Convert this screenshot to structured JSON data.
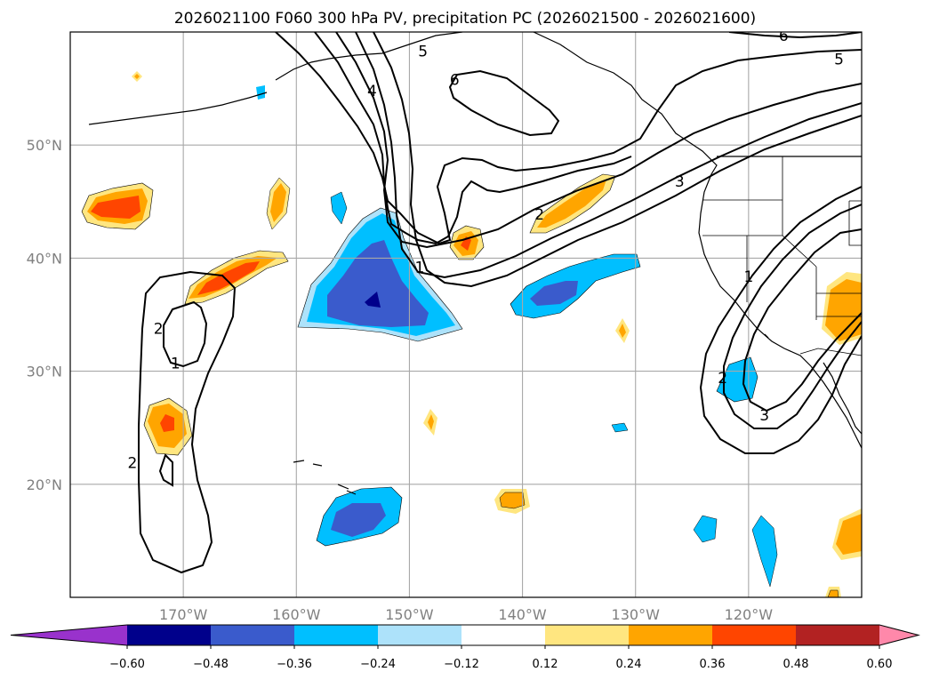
{
  "chart_data": {
    "type": "heatmap",
    "title": "2026021100 F060 300 hPa PV, precipitation PC (2026021500 - 2026021600)",
    "projection": "lat-lon",
    "xlim": [
      -180,
      -110
    ],
    "ylim": [
      10,
      60
    ],
    "lat_ticks": [
      {
        "value": 50,
        "label": "50°N"
      },
      {
        "value": 40,
        "label": "40°N"
      },
      {
        "value": 30,
        "label": "30°N"
      },
      {
        "value": 20,
        "label": "20°N"
      }
    ],
    "lon_ticks": [
      {
        "value": -170,
        "label": "170°W"
      },
      {
        "value": -160,
        "label": "160°W"
      },
      {
        "value": -150,
        "label": "150°W"
      },
      {
        "value": -140,
        "label": "140°W"
      },
      {
        "value": -130,
        "label": "130°W"
      },
      {
        "value": -120,
        "label": "120°W"
      }
    ],
    "grid": true,
    "colorbar": {
      "placement": "bottom",
      "extend": "both",
      "tick_labels": [
        "−0.60",
        "−0.48",
        "−0.36",
        "−0.24",
        "−0.12",
        "0.12",
        "0.24",
        "0.36",
        "0.48",
        "0.60"
      ],
      "under_color": "#9932CC",
      "over_color": "#FF88AA",
      "bin_colors": [
        "#00008B",
        "#3A5BCC",
        "#00BFFF",
        "#ADE2FA",
        "#FFFFFF",
        "#FFE680",
        "#FFA500",
        "#FF4500",
        "#B22222"
      ]
    },
    "pv_contours": {
      "levels": [
        1,
        2,
        3,
        4,
        5,
        6
      ],
      "labels": [
        {
          "text": "5",
          "lon": -148.8,
          "lat": 58.3
        },
        {
          "text": "6",
          "lon": -146.0,
          "lat": 55.8
        },
        {
          "text": "4",
          "lon": -153.3,
          "lat": 54.8
        },
        {
          "text": "6",
          "lon": -116.9,
          "lat": 59.7
        },
        {
          "text": "5",
          "lon": -112.0,
          "lat": 57.6
        },
        {
          "text": "3",
          "lon": -126.1,
          "lat": 46.8
        },
        {
          "text": "2",
          "lon": -138.5,
          "lat": 43.9
        },
        {
          "text": "1",
          "lon": -149.1,
          "lat": 39.2
        },
        {
          "text": "1",
          "lon": -120.0,
          "lat": 38.4
        },
        {
          "text": "2",
          "lon": -122.3,
          "lat": 29.4
        },
        {
          "text": "3",
          "lon": -118.6,
          "lat": 26.1
        },
        {
          "text": "2",
          "lon": -172.2,
          "lat": 33.8
        },
        {
          "text": "1",
          "lon": -170.7,
          "lat": 30.7
        },
        {
          "text": "2",
          "lon": -174.5,
          "lat": 21.9
        }
      ]
    },
    "precip_regions": [
      {
        "name": "west-central-pacific-negative",
        "value": -0.48,
        "lon": -152.5,
        "lat": 36.5
      },
      {
        "name": "central-north-pacific-negative",
        "value": -0.36,
        "lon": -139.0,
        "lat": 37.0
      },
      {
        "name": "hawaii-negative",
        "value": -0.36,
        "lon": -155.0,
        "lat": 16.5
      },
      {
        "name": "baja-negative",
        "value": -0.24,
        "lon": -120.5,
        "lat": 28.5
      },
      {
        "name": "dateline-positive",
        "value": 0.36,
        "lon": -176.5,
        "lat": 44.0
      },
      {
        "name": "subtropical-band-positive",
        "value": 0.36,
        "lon": -166.0,
        "lat": 38.5
      },
      {
        "name": "frontal-band-positive",
        "value": 0.24,
        "lon": -139.0,
        "lat": 44.5
      },
      {
        "name": "california-positive",
        "value": 0.24,
        "lon": -111.5,
        "lat": 36.0
      },
      {
        "name": "southwest-pacific-positive",
        "value": 0.36,
        "lon": -170.3,
        "lat": 24.5
      },
      {
        "name": "south-of-alaska-positive",
        "value": 0.36,
        "lon": -146.5,
        "lat": 41.3
      }
    ]
  }
}
